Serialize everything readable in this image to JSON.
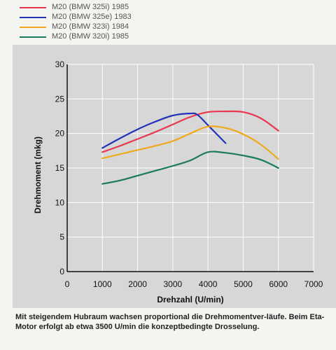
{
  "chart_data": {
    "type": "line",
    "xlabel": "Drehzahl (U/min)",
    "ylabel": "Drehmoment (mkg)",
    "xlim": [
      0,
      7000
    ],
    "ylim": [
      0,
      30
    ],
    "x_ticks": [
      0,
      1000,
      2000,
      3000,
      4000,
      5000,
      6000,
      7000
    ],
    "y_ticks": [
      0,
      5,
      10,
      15,
      20,
      25,
      30
    ],
    "grid": true,
    "legend_position": "top-left",
    "series": [
      {
        "name": "M20 (BMW 325i) 1985",
        "color": "#e8384f",
        "x": [
          1000,
          1500,
          2000,
          2500,
          3000,
          3500,
          4000,
          4500,
          5000,
          5500,
          6000
        ],
        "y": [
          17.3,
          18.2,
          19.2,
          20.2,
          21.3,
          22.4,
          23.1,
          23.2,
          23.1,
          22.2,
          20.4
        ]
      },
      {
        "name": "M20 (BMW 325e) 1983",
        "color": "#2233b8",
        "x": [
          1000,
          1500,
          2000,
          2500,
          3000,
          3500,
          3700,
          4000,
          4500
        ],
        "y": [
          17.9,
          19.3,
          20.6,
          21.7,
          22.6,
          22.9,
          22.7,
          21.2,
          18.6
        ]
      },
      {
        "name": "M20 (BMW 323i) 1984",
        "color": "#f0a81c",
        "x": [
          1000,
          1500,
          2000,
          2500,
          3000,
          3500,
          4000,
          4500,
          5000,
          5500,
          6000
        ],
        "y": [
          16.4,
          17.0,
          17.6,
          18.2,
          18.9,
          20.0,
          21.0,
          20.8,
          19.9,
          18.4,
          16.3
        ]
      },
      {
        "name": "M20 (BMW 320i) 1985",
        "color": "#1a7a5e",
        "x": [
          1000,
          1500,
          2000,
          2500,
          3000,
          3500,
          4000,
          4500,
          5000,
          5500,
          6000
        ],
        "y": [
          12.7,
          13.2,
          13.9,
          14.6,
          15.3,
          16.1,
          17.3,
          17.2,
          16.8,
          16.2,
          15.0
        ]
      }
    ]
  },
  "caption": "Mit steigendem Hubraum wachsen proportional die Drehmomentver-läufe. Beim Eta-Motor erfolgt ab etwa 3500 U/min die konzeptbedingte Drosselung."
}
